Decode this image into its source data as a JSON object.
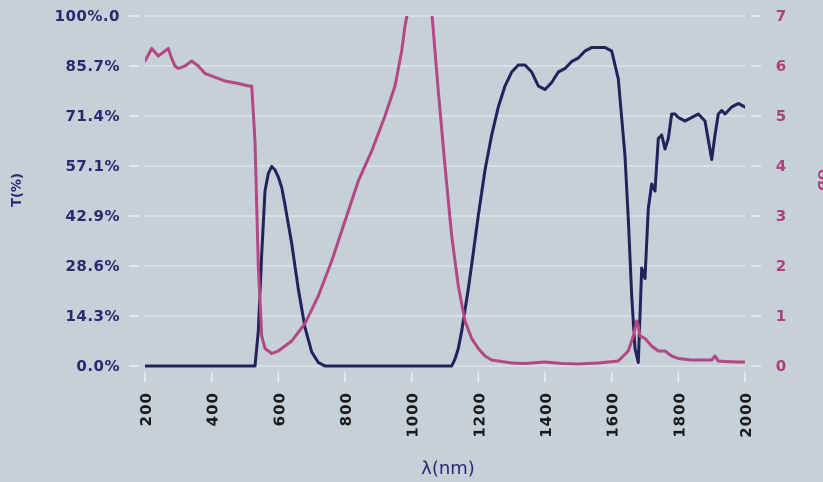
{
  "chart_data": {
    "type": "line",
    "xlabel": "λ(nm)",
    "ylabel_left": "T(%)",
    "ylabel_right": "OD",
    "xlim": [
      200,
      2000
    ],
    "ylim_left": [
      0,
      100
    ],
    "ylim_right": [
      0,
      7
    ],
    "x_ticks": [
      "200",
      "400",
      "600",
      "800",
      "1000",
      "1200",
      "1400",
      "1600",
      "1800",
      "2000"
    ],
    "y_left_ticks": [
      "0.0%",
      "14.3%",
      "28.6%",
      "42.9%",
      "57.1%",
      "71.4%",
      "85.7%",
      "100%.0"
    ],
    "y_right_ticks": [
      "0",
      "1",
      "2",
      "3",
      "4",
      "5",
      "6",
      "7"
    ],
    "grid": true,
    "colors": {
      "background": "#c5d0d9",
      "transmittance": "#23235c",
      "optical_density": "#b34883",
      "grid": "#e8eef3"
    },
    "series": [
      {
        "axis": "left",
        "x": [
          200,
          530,
          540,
          550,
          560,
          570,
          580,
          590,
          600,
          610,
          620,
          640,
          660,
          680,
          700,
          720,
          740,
          760,
          780,
          1120,
          1130,
          1140,
          1150,
          1160,
          1170,
          1180,
          1200,
          1220,
          1240,
          1260,
          1280,
          1300,
          1320,
          1340,
          1360,
          1380,
          1400,
          1420,
          1440,
          1460,
          1480,
          1500,
          1520,
          1540,
          1560,
          1580,
          1600,
          1620,
          1640,
          1650,
          1660,
          1670,
          1680,
          1690,
          1700,
          1710,
          1720,
          1730,
          1740,
          1750,
          1760,
          1770,
          1780,
          1790,
          1800,
          1820,
          1840,
          1860,
          1880,
          1900,
          1910,
          1920,
          1930,
          1940,
          1960,
          1980,
          2000
        ],
        "y": [
          0,
          0,
          10,
          32,
          50,
          55,
          57,
          56,
          54,
          51,
          46,
          35,
          22,
          11,
          4,
          1,
          0,
          0,
          0,
          0,
          2,
          5,
          10,
          16,
          22,
          29,
          43,
          56,
          66,
          74,
          80,
          84,
          86,
          86,
          84,
          80,
          79,
          81,
          84,
          85,
          87,
          88,
          90,
          91,
          91,
          91,
          90,
          82,
          60,
          42,
          20,
          5,
          1,
          28,
          25,
          45,
          52,
          50,
          65,
          66,
          62,
          65,
          72,
          72,
          71,
          70,
          71,
          72,
          70,
          59,
          66,
          72,
          73,
          72,
          74,
          75,
          74
        ]
      },
      {
        "axis": "right",
        "x": [
          200,
          220,
          240,
          260,
          270,
          280,
          290,
          300,
          320,
          340,
          360,
          380,
          400,
          440,
          480,
          510,
          520,
          530,
          540,
          550,
          560,
          580,
          600,
          640,
          680,
          720,
          760,
          800,
          840,
          880,
          920,
          950,
          970,
          980,
          1000,
          1040,
          1060,
          1080,
          1100,
          1120,
          1140,
          1160,
          1180,
          1200,
          1220,
          1240,
          1300,
          1340,
          1400,
          1450,
          1500,
          1560,
          1620,
          1650,
          1665,
          1675,
          1680,
          1685,
          1700,
          1720,
          1740,
          1760,
          1780,
          1800,
          1840,
          1880,
          1900,
          1910,
          1920,
          1940,
          1980,
          2000
        ],
        "y": [
          6.1,
          6.35,
          6.2,
          6.3,
          6.35,
          6.15,
          6.0,
          5.95,
          6.0,
          6.1,
          6.0,
          5.85,
          5.8,
          5.7,
          5.65,
          5.6,
          5.6,
          4.5,
          2.0,
          0.6,
          0.35,
          0.25,
          0.3,
          0.5,
          0.85,
          1.4,
          2.1,
          2.9,
          3.7,
          4.3,
          5.0,
          5.6,
          6.3,
          6.8,
          7.5,
          7.4,
          7.1,
          5.5,
          4.0,
          2.6,
          1.6,
          0.9,
          0.55,
          0.35,
          0.2,
          0.12,
          0.06,
          0.05,
          0.08,
          0.05,
          0.04,
          0.06,
          0.1,
          0.3,
          0.6,
          0.9,
          0.8,
          0.6,
          0.55,
          0.4,
          0.3,
          0.3,
          0.2,
          0.15,
          0.12,
          0.12,
          0.12,
          0.2,
          0.1,
          0.09,
          0.08,
          0.08
        ]
      }
    ]
  }
}
